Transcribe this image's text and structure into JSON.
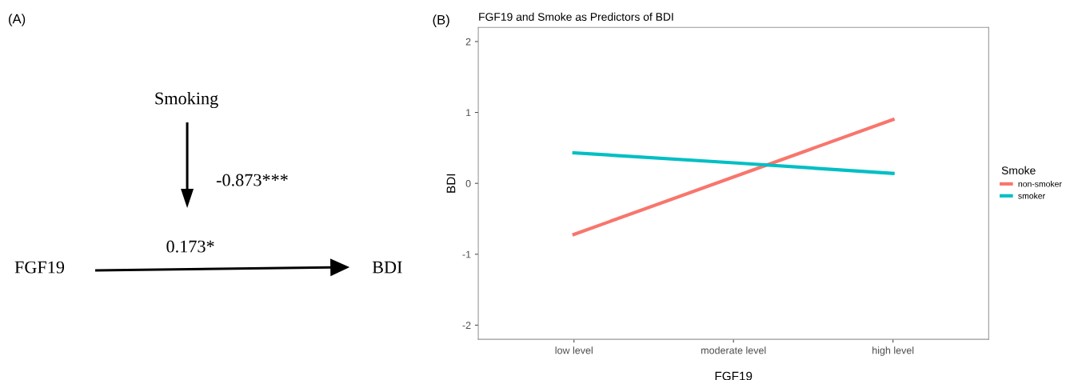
{
  "chart_data": [
    {
      "type": "other",
      "annotations": [
        "(A)",
        "Smoking",
        "-0.873***",
        "0.173*",
        "FGF19",
        "BDI"
      ]
    },
    {
      "type": "line",
      "title": "FGF19 and Smoke as Predictors of BDI",
      "xlabel": "FGF19",
      "ylabel": "BDI",
      "legend_title": "Smoke",
      "annotations": [
        "(B)"
      ],
      "categories": [
        "low level",
        "moderate level",
        "high level"
      ],
      "series": [
        {
          "name": "non-smoker",
          "color": "#f8766d",
          "values": [
            -0.72,
            0.09,
            0.9
          ]
        },
        {
          "name": "smoker",
          "color": "#00bfc4",
          "values": [
            0.43,
            0.29,
            0.14
          ]
        }
      ],
      "ylim": [
        -2.2,
        2.2
      ],
      "yticks": [
        -2,
        -1,
        0,
        1,
        2
      ],
      "grid": false,
      "legend": "right",
      "marker": "none",
      "line_style": "solid"
    }
  ]
}
